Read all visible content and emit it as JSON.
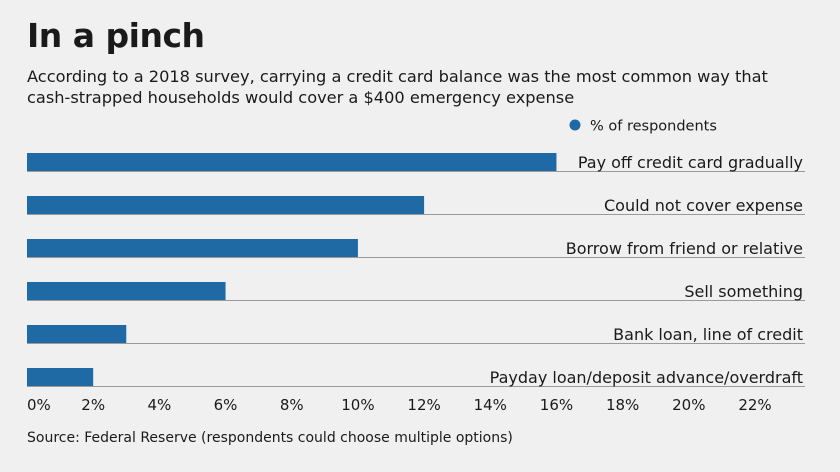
{
  "header": {
    "title": "In a pinch",
    "subtitle_line1": "According to a 2018 survey, carrying a credit card balance was the most common way that",
    "subtitle_line2": "cash-strapped households would cover a $400 emergency expense"
  },
  "footer": {
    "source": "Source: Federal Reserve (respondents could choose multiple options)"
  },
  "colors": {
    "bar": "#1f6aa5",
    "background": "#f0f0f0",
    "baseline": "#9a9a9a",
    "text": "#1a1a1a"
  },
  "chart_data": {
    "type": "bar",
    "orientation": "horizontal",
    "categories": [
      "Pay off credit card gradually",
      "Could not cover expense",
      "Borrow from friend or relative",
      "Sell something",
      "Bank loan, line of credit",
      "Payday loan/deposit advance/overdraft"
    ],
    "series": [
      {
        "name": "% of respondents",
        "values": [
          16,
          12,
          10,
          6,
          3,
          2
        ]
      }
    ],
    "xlim": [
      0,
      24
    ],
    "x_ticks": [
      0,
      2,
      4,
      6,
      8,
      10,
      12,
      14,
      16,
      18,
      20,
      22
    ],
    "x_tick_labels": [
      "0%",
      "2%",
      "4%",
      "6%",
      "8%",
      "10%",
      "12%",
      "14%",
      "16%",
      "18%",
      "20%",
      "22%"
    ],
    "legend_position": "top-right",
    "grid": false
  }
}
